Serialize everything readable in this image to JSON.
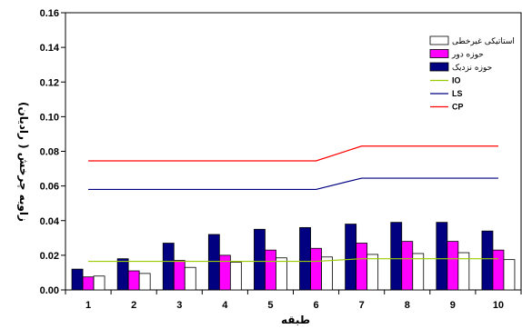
{
  "chart_data": {
    "type": "bar",
    "xlabel": "طبقه",
    "ylabel": "زاویه چرخش ( رادیان)",
    "ylim": [
      0,
      0.16
    ],
    "yticks": [
      "0.00",
      "0.02",
      "0.04",
      "0.06",
      "0.08",
      "0.10",
      "0.12",
      "0.14",
      "0.16"
    ],
    "categories": [
      "1",
      "2",
      "3",
      "4",
      "5",
      "6",
      "7",
      "8",
      "9",
      "10"
    ],
    "series": [
      {
        "name": "حوزه نزدیک",
        "kind": "bar",
        "color": "#000080",
        "values": [
          0.012,
          0.018,
          0.027,
          0.032,
          0.035,
          0.036,
          0.038,
          0.039,
          0.039,
          0.034
        ]
      },
      {
        "name": "حوزه دور",
        "kind": "bar",
        "color": "#ff00ff",
        "values": [
          0.0075,
          0.011,
          0.017,
          0.02,
          0.023,
          0.024,
          0.027,
          0.028,
          0.028,
          0.023
        ]
      },
      {
        "name": "استاتیکی غیرخطی",
        "kind": "bar",
        "color": "#ffffff",
        "values": [
          0.008,
          0.0095,
          0.013,
          0.016,
          0.0185,
          0.019,
          0.0205,
          0.021,
          0.0215,
          0.0175
        ]
      },
      {
        "name": "IO",
        "kind": "line",
        "color": "#99cc00",
        "values": [
          0.0165,
          0.0165,
          0.0165,
          0.0165,
          0.0165,
          0.0165,
          0.018,
          0.018,
          0.018,
          0.018
        ]
      },
      {
        "name": "LS",
        "kind": "line",
        "color": "#000080",
        "values": [
          0.058,
          0.058,
          0.058,
          0.058,
          0.058,
          0.058,
          0.0645,
          0.0645,
          0.0645,
          0.0645
        ]
      },
      {
        "name": "CP",
        "kind": "line",
        "color": "#ff0000",
        "values": [
          0.0745,
          0.0745,
          0.0745,
          0.0745,
          0.0745,
          0.0745,
          0.083,
          0.083,
          0.083,
          0.083
        ]
      }
    ],
    "legend_order": [
      "استاتیکی غیرخطی",
      "حوزه دور",
      "حوزه نزدیک",
      "IO",
      "LS",
      "CP"
    ],
    "legend_placement": "top-right",
    "grid": false
  }
}
